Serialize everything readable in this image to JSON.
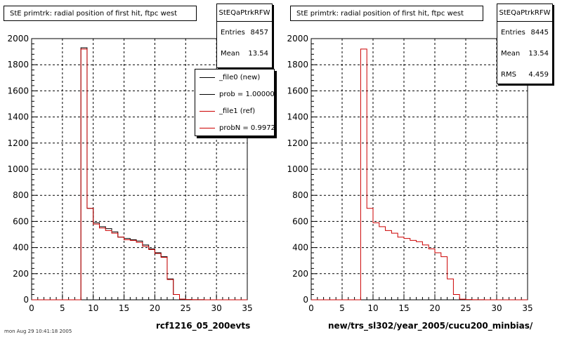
{
  "panels": [
    {
      "title": "StE primtrk: radial position of first hit, ftpc west",
      "stats": {
        "name": "StEQaPtrkRFW",
        "rows": [
          {
            "label": "Entries",
            "value": "8457"
          },
          {
            "label": "Mean",
            "value": "13.54"
          }
        ]
      },
      "legend": [
        {
          "label": "_file0 (new)",
          "color": "#000000"
        },
        {
          "label": "prob = 1.000000",
          "color": "#000000"
        },
        {
          "label": "_file1 (ref)",
          "color": "#cc0000"
        },
        {
          "label": "probN = 0.997224",
          "color": "#cc0000"
        }
      ],
      "xtitle": "rcf1216_05_200evts"
    },
    {
      "title": "StE primtrk: radial position of first hit, ftpc west",
      "stats": {
        "name": "StEQaPtrkRFW",
        "rows": [
          {
            "label": "Entries",
            "value": "8445"
          },
          {
            "label": "Mean",
            "value": "13.54"
          },
          {
            "label": "RMS",
            "value": "4.459"
          }
        ]
      },
      "legend": [],
      "xtitle": "new/trs_sl302/year_2005/cucu200_minbias/"
    }
  ],
  "footer": "mon Aug 29 10:41:18 2005",
  "chart_data": [
    {
      "type": "line",
      "title": "StE primtrk: radial position of first hit, ftpc west",
      "xlabel": "rcf1216_05_200evts",
      "ylabel": "",
      "xlim": [
        0,
        35
      ],
      "ylim": [
        0,
        2000
      ],
      "xticks": [
        0,
        5,
        10,
        15,
        20,
        25,
        30,
        35
      ],
      "yticks": [
        0,
        200,
        400,
        600,
        800,
        1000,
        1200,
        1400,
        1600,
        1800,
        2000
      ],
      "grid": true,
      "bin_edges": [
        0,
        1,
        2,
        3,
        4,
        5,
        6,
        7,
        8,
        9,
        10,
        11,
        12,
        13,
        14,
        15,
        16,
        17,
        18,
        19,
        20,
        21,
        22,
        23,
        24,
        25,
        26,
        27,
        28,
        29,
        30,
        31,
        32,
        33,
        34,
        35
      ],
      "series": [
        {
          "name": "_file0 (new)",
          "color": "#000000",
          "values": [
            0,
            0,
            0,
            0,
            0,
            0,
            0,
            0,
            1930,
            700,
            590,
            560,
            545,
            520,
            480,
            470,
            460,
            450,
            420,
            390,
            360,
            330,
            160,
            40,
            5,
            2,
            1,
            1,
            0,
            0,
            0,
            0,
            0,
            0,
            0
          ]
        },
        {
          "name": "_file1 (ref)",
          "color": "#cc0000",
          "values": [
            0,
            0,
            0,
            0,
            0,
            0,
            0,
            0,
            1920,
            700,
            580,
            550,
            530,
            510,
            480,
            460,
            455,
            440,
            410,
            385,
            355,
            325,
            155,
            40,
            5,
            2,
            1,
            1,
            0,
            0,
            0,
            0,
            0,
            0,
            0
          ]
        }
      ]
    },
    {
      "type": "line",
      "title": "StE primtrk: radial position of first hit, ftpc west",
      "xlabel": "new/trs_sl302/year_2005/cucu200_minbias/",
      "ylabel": "",
      "xlim": [
        0,
        35
      ],
      "ylim": [
        0,
        2000
      ],
      "xticks": [
        0,
        5,
        10,
        15,
        20,
        25,
        30,
        35
      ],
      "yticks": [
        0,
        200,
        400,
        600,
        800,
        1000,
        1200,
        1400,
        1600,
        1800,
        2000
      ],
      "grid": true,
      "bin_edges": [
        0,
        1,
        2,
        3,
        4,
        5,
        6,
        7,
        8,
        9,
        10,
        11,
        12,
        13,
        14,
        15,
        16,
        17,
        18,
        19,
        20,
        21,
        22,
        23,
        24,
        25,
        26,
        27,
        28,
        29,
        30,
        31,
        32,
        33,
        34,
        35
      ],
      "series": [
        {
          "color": "#cc0000",
          "values": [
            0,
            0,
            0,
            0,
            0,
            0,
            0,
            0,
            1920,
            700,
            590,
            560,
            530,
            510,
            480,
            470,
            455,
            445,
            420,
            390,
            360,
            330,
            160,
            40,
            5,
            2,
            1,
            1,
            0,
            0,
            0,
            0,
            0,
            0,
            0
          ]
        }
      ]
    }
  ]
}
